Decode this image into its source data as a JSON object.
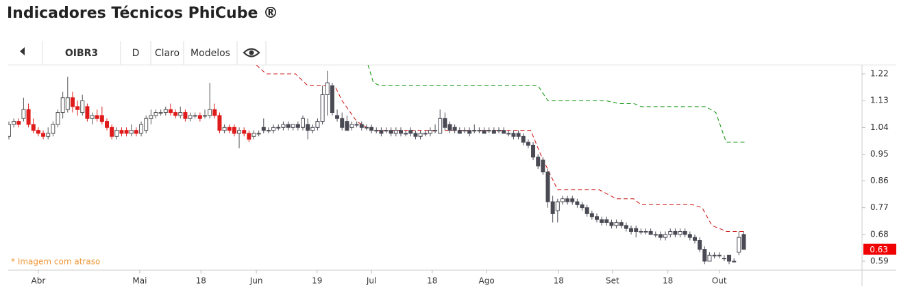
{
  "header": {
    "title": "Indicadores Técnicos PhiCube ®"
  },
  "toolbar": [
    "OIBR3",
    "D",
    "Claro",
    "Modelos"
  ],
  "chart_data": {
    "type": "candlestick",
    "ylim": [
      0.56,
      1.25
    ],
    "yticks": [
      1.22,
      1.13,
      1.04,
      0.95,
      0.86,
      0.77,
      0.68,
      0.59
    ],
    "xticks": [
      {
        "value": 6,
        "label": "Abr"
      },
      {
        "value": 26.7,
        "label": "Mai"
      },
      {
        "value": 39.2,
        "label": "18"
      },
      {
        "value": 50.5,
        "label": "Jun"
      },
      {
        "value": 62.9,
        "label": "19"
      },
      {
        "value": 74,
        "label": "Jul"
      },
      {
        "value": 86.4,
        "label": "18"
      },
      {
        "value": 97.5,
        "label": "Ago"
      },
      {
        "value": 112.2,
        "label": "18"
      },
      {
        "value": 123.2,
        "label": "Set"
      },
      {
        "value": 134.5,
        "label": "18"
      },
      {
        "value": 145,
        "label": "Out"
      }
    ],
    "annotation": "* Imagem com atraso",
    "last_price": 0.63,
    "last_price_color": "#f00000",
    "series": [
      {
        "color_down": "#e01b1b",
        "color_outline": "#555555",
        "values": [
          [
            1.01,
            1.06,
            1.0,
            1.05
          ],
          [
            1.05,
            1.07,
            1.04,
            1.06
          ],
          [
            1.06,
            1.07,
            1.04,
            1.05
          ],
          [
            1.07,
            1.14,
            1.06,
            1.1
          ],
          [
            1.1,
            1.12,
            1.04,
            1.05
          ],
          [
            1.05,
            1.07,
            1.02,
            1.03
          ],
          [
            1.03,
            1.04,
            1.01,
            1.02
          ],
          [
            1.02,
            1.03,
            1.0,
            1.01
          ],
          [
            1.01,
            1.04,
            1.0,
            1.02
          ],
          [
            1.02,
            1.06,
            1.01,
            1.05
          ],
          [
            1.05,
            1.1,
            1.04,
            1.09
          ],
          [
            1.09,
            1.16,
            1.07,
            1.14
          ],
          [
            1.1,
            1.21,
            1.09,
            1.14
          ],
          [
            1.14,
            1.16,
            1.09,
            1.11
          ],
          [
            1.11,
            1.13,
            1.08,
            1.1
          ],
          [
            1.09,
            1.15,
            1.08,
            1.13
          ],
          [
            1.11,
            1.12,
            1.06,
            1.07
          ],
          [
            1.07,
            1.09,
            1.05,
            1.08
          ],
          [
            1.08,
            1.1,
            1.06,
            1.07
          ],
          [
            1.08,
            1.11,
            1.05,
            1.06
          ],
          [
            1.06,
            1.07,
            1.03,
            1.04
          ],
          [
            1.04,
            1.05,
            1.0,
            1.01
          ],
          [
            1.01,
            1.04,
            1.0,
            1.03
          ],
          [
            1.03,
            1.04,
            1.01,
            1.02
          ],
          [
            1.03,
            1.04,
            1.01,
            1.02
          ],
          [
            1.02,
            1.05,
            1.01,
            1.03
          ],
          [
            1.03,
            1.04,
            1.01,
            1.02
          ],
          [
            1.02,
            1.06,
            1.01,
            1.05
          ],
          [
            1.03,
            1.08,
            1.02,
            1.07
          ],
          [
            1.07,
            1.1,
            1.05,
            1.08
          ],
          [
            1.08,
            1.1,
            1.07,
            1.09
          ],
          [
            1.09,
            1.1,
            1.08,
            1.09
          ],
          [
            1.09,
            1.11,
            1.08,
            1.1
          ],
          [
            1.1,
            1.12,
            1.08,
            1.09
          ],
          [
            1.09,
            1.1,
            1.07,
            1.08
          ],
          [
            1.08,
            1.11,
            1.07,
            1.09
          ],
          [
            1.09,
            1.1,
            1.06,
            1.07
          ],
          [
            1.07,
            1.09,
            1.06,
            1.08
          ],
          [
            1.08,
            1.09,
            1.07,
            1.08
          ],
          [
            1.08,
            1.09,
            1.06,
            1.07
          ],
          [
            1.08,
            1.1,
            1.07,
            1.08
          ],
          [
            1.08,
            1.19,
            1.07,
            1.1
          ],
          [
            1.1,
            1.12,
            1.07,
            1.08
          ],
          [
            1.08,
            1.09,
            1.02,
            1.03
          ],
          [
            1.03,
            1.05,
            1.02,
            1.04
          ],
          [
            1.04,
            1.05,
            1.02,
            1.03
          ],
          [
            1.04,
            1.05,
            1.01,
            1.02
          ],
          [
            1.02,
            1.04,
            0.97,
            1.03
          ],
          [
            1.03,
            1.04,
            1.01,
            1.02
          ],
          [
            1.02,
            1.03,
            0.99,
            1.0
          ],
          [
            1.01,
            1.03,
            1.0,
            1.02
          ],
          [
            1.02,
            1.03,
            1.01,
            1.02
          ]
        ]
      },
      {
        "color_down": "#4a4a55",
        "color_outline": "#4a4a55",
        "values": [
          [
            1.04,
            1.07,
            1.02,
            1.03
          ],
          [
            1.03,
            1.04,
            1.02,
            1.03
          ],
          [
            1.03,
            1.05,
            1.02,
            1.04
          ],
          [
            1.04,
            1.05,
            1.03,
            1.04
          ],
          [
            1.04,
            1.06,
            1.03,
            1.05
          ],
          [
            1.05,
            1.06,
            1.03,
            1.04
          ],
          [
            1.04,
            1.05,
            1.03,
            1.05
          ],
          [
            1.05,
            1.06,
            1.03,
            1.04
          ],
          [
            1.04,
            1.08,
            1.03,
            1.07
          ],
          [
            1.05,
            1.07,
            1.0,
            1.03
          ],
          [
            1.03,
            1.05,
            1.02,
            1.04
          ],
          [
            1.04,
            1.07,
            1.03,
            1.06
          ],
          [
            1.06,
            1.18,
            1.05,
            1.15
          ],
          [
            1.15,
            1.23,
            1.08,
            1.19
          ],
          [
            1.18,
            1.19,
            1.08,
            1.09
          ],
          [
            1.08,
            1.1,
            1.06,
            1.07
          ],
          [
            1.07,
            1.09,
            1.03,
            1.04
          ],
          [
            1.06,
            1.08,
            1.03,
            1.03
          ],
          [
            1.04,
            1.06,
            1.03,
            1.05
          ],
          [
            1.05,
            1.06,
            1.04,
            1.05
          ],
          [
            1.05,
            1.06,
            1.03,
            1.04
          ],
          [
            1.04,
            1.05,
            1.03,
            1.04
          ],
          [
            1.04,
            1.05,
            1.02,
            1.03
          ],
          [
            1.03,
            1.04,
            1.02,
            1.03
          ],
          [
            1.03,
            1.04,
            1.01,
            1.02
          ],
          [
            1.03,
            1.04,
            1.02,
            1.03
          ],
          [
            1.03,
            1.04,
            1.01,
            1.02
          ],
          [
            1.02,
            1.04,
            1.01,
            1.03
          ],
          [
            1.03,
            1.04,
            1.01,
            1.02
          ],
          [
            1.02,
            1.03,
            1.01,
            1.02
          ],
          [
            1.03,
            1.04,
            1.01,
            1.02
          ],
          [
            1.02,
            1.03,
            1.0,
            1.01
          ],
          [
            1.01,
            1.03,
            1.0,
            1.02
          ],
          [
            1.02,
            1.03,
            1.01,
            1.02
          ],
          [
            1.02,
            1.04,
            1.01,
            1.03
          ],
          [
            1.03,
            1.05,
            1.02,
            1.03
          ],
          [
            1.02,
            1.1,
            1.02,
            1.07
          ],
          [
            1.07,
            1.09,
            1.03,
            1.04
          ],
          [
            1.05,
            1.06,
            1.02,
            1.03
          ],
          [
            1.04,
            1.05,
            1.02,
            1.03
          ],
          [
            1.03,
            1.04,
            1.02,
            1.02
          ],
          [
            1.03,
            1.04,
            1.02,
            1.03
          ],
          [
            1.03,
            1.04,
            1.01,
            1.02
          ],
          [
            1.03,
            1.05,
            1.02,
            1.03
          ],
          [
            1.03,
            1.04,
            1.02,
            1.03
          ],
          [
            1.03,
            1.04,
            1.02,
            1.02
          ],
          [
            1.03,
            1.04,
            1.02,
            1.03
          ],
          [
            1.03,
            1.04,
            1.02,
            1.02
          ],
          [
            1.03,
            1.04,
            1.02,
            1.03
          ],
          [
            1.03,
            1.04,
            1.02,
            1.02
          ],
          [
            1.02,
            1.03,
            1.01,
            1.02
          ],
          [
            1.02,
            1.03,
            1.0,
            1.01
          ],
          [
            1.02,
            1.03,
            1.0,
            1.01
          ],
          [
            1.01,
            1.02,
            0.98,
            0.99
          ],
          [
            0.99,
            1.0,
            0.97,
            0.98
          ],
          [
            0.98,
            0.99,
            0.93,
            0.94
          ],
          [
            0.94,
            0.95,
            0.9,
            0.91
          ],
          [
            0.93,
            0.94,
            0.88,
            0.89
          ],
          [
            0.89,
            0.9,
            0.77,
            0.79
          ],
          [
            0.79,
            0.81,
            0.72,
            0.75
          ],
          [
            0.76,
            0.8,
            0.72,
            0.79
          ],
          [
            0.79,
            0.81,
            0.78,
            0.8
          ],
          [
            0.8,
            0.81,
            0.78,
            0.79
          ],
          [
            0.8,
            0.81,
            0.78,
            0.79
          ],
          [
            0.79,
            0.8,
            0.77,
            0.78
          ],
          [
            0.78,
            0.79,
            0.76,
            0.77
          ],
          [
            0.77,
            0.78,
            0.74,
            0.75
          ],
          [
            0.75,
            0.76,
            0.73,
            0.74
          ],
          [
            0.74,
            0.75,
            0.72,
            0.73
          ],
          [
            0.73,
            0.74,
            0.71,
            0.72
          ],
          [
            0.73,
            0.74,
            0.71,
            0.72
          ],
          [
            0.72,
            0.73,
            0.7,
            0.71
          ],
          [
            0.71,
            0.73,
            0.7,
            0.72
          ],
          [
            0.72,
            0.73,
            0.7,
            0.71
          ],
          [
            0.71,
            0.72,
            0.69,
            0.7
          ],
          [
            0.7,
            0.71,
            0.68,
            0.69
          ],
          [
            0.7,
            0.71,
            0.67,
            0.69
          ],
          [
            0.69,
            0.7,
            0.68,
            0.69
          ],
          [
            0.69,
            0.7,
            0.68,
            0.69
          ],
          [
            0.69,
            0.7,
            0.68,
            0.68
          ],
          [
            0.68,
            0.69,
            0.67,
            0.68
          ],
          [
            0.68,
            0.69,
            0.66,
            0.67
          ],
          [
            0.67,
            0.69,
            0.66,
            0.68
          ],
          [
            0.68,
            0.7,
            0.67,
            0.69
          ],
          [
            0.69,
            0.7,
            0.67,
            0.68
          ],
          [
            0.68,
            0.7,
            0.67,
            0.69
          ],
          [
            0.69,
            0.7,
            0.67,
            0.68
          ],
          [
            0.68,
            0.69,
            0.66,
            0.67
          ],
          [
            0.67,
            0.68,
            0.65,
            0.66
          ],
          [
            0.66,
            0.67,
            0.62,
            0.63
          ],
          [
            0.63,
            0.64,
            0.58,
            0.59
          ],
          [
            0.59,
            0.62,
            0.59,
            0.61
          ],
          [
            0.61,
            0.62,
            0.6,
            0.61
          ],
          [
            0.61,
            0.62,
            0.6,
            0.61
          ],
          [
            0.6,
            0.61,
            0.59,
            0.6
          ],
          [
            0.61,
            0.61,
            0.58,
            0.59
          ],
          [
            0.59,
            0.6,
            0.585,
            0.59
          ],
          [
            0.62,
            0.69,
            0.61,
            0.67
          ],
          [
            0.68,
            0.69,
            0.63,
            0.63
          ]
        ]
      }
    ],
    "lines": [
      {
        "color": "#d02020",
        "x": [
          50.5,
          52.5,
          58.5,
          61,
          66.5,
          68,
          71,
          73,
          74.5,
          106.5,
          108.5,
          112,
          120.5,
          124,
          127.5,
          129,
          139.5,
          141.5,
          143.5,
          146.5,
          150.5
        ],
        "values": [
          1.25,
          1.22,
          1.22,
          1.18,
          1.18,
          1.13,
          1.06,
          1.04,
          1.03,
          1.03,
          0.95,
          0.83,
          0.83,
          0.8,
          0.8,
          0.78,
          0.78,
          0.77,
          0.71,
          0.69,
          0.69
        ]
      },
      {
        "color": "#1a9a1a",
        "x": [
          73.3,
          74.4,
          75.8,
          108,
          110,
          121.8,
          124.6,
          127.6,
          129,
          142.2,
          144.3,
          146.4,
          150.6
        ],
        "values": [
          1.25,
          1.19,
          1.18,
          1.18,
          1.13,
          1.13,
          1.12,
          1.12,
          1.11,
          1.11,
          1.09,
          0.99,
          0.99
        ]
      }
    ]
  }
}
